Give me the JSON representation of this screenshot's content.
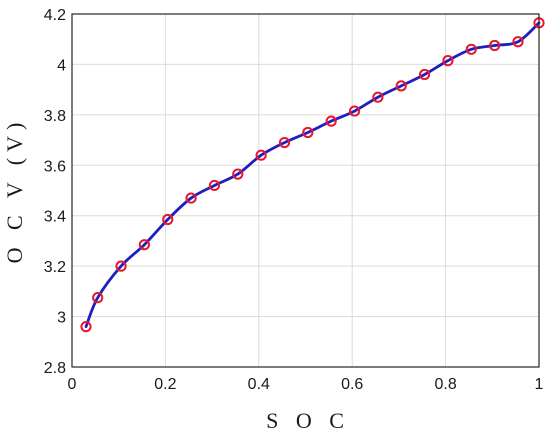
{
  "chart_data": {
    "type": "line",
    "title": "",
    "xlabel": "S O C",
    "ylabel": "O C V (V)",
    "xlim": [
      0,
      1
    ],
    "ylim": [
      2.8,
      4.2
    ],
    "xticks": [
      0,
      0.2,
      0.4,
      0.6,
      0.8,
      1
    ],
    "xtick_labels": [
      "0",
      "0.2",
      "0.4",
      "0.6",
      "0.8",
      "1"
    ],
    "yticks": [
      2.8,
      3.0,
      3.2,
      3.4,
      3.6,
      3.8,
      4.0,
      4.2
    ],
    "ytick_labels": [
      "2.8",
      "3",
      "3.2",
      "3.4",
      "3.6",
      "3.8",
      "4",
      "4.2"
    ],
    "grid": true,
    "line_color": "#1f1fbf",
    "marker_color": "#e8162e",
    "series": [
      {
        "x": [
          0.03,
          0.055,
          0.105,
          0.155,
          0.205,
          0.255,
          0.305,
          0.355,
          0.405,
          0.455,
          0.505,
          0.555,
          0.605,
          0.655,
          0.705,
          0.755,
          0.805,
          0.855,
          0.905,
          0.955,
          1.0
        ],
        "y": [
          2.96,
          3.075,
          3.2,
          3.285,
          3.385,
          3.47,
          3.52,
          3.565,
          3.64,
          3.69,
          3.73,
          3.775,
          3.815,
          3.87,
          3.915,
          3.96,
          4.015,
          4.06,
          4.075,
          4.09,
          4.165
        ]
      }
    ]
  }
}
